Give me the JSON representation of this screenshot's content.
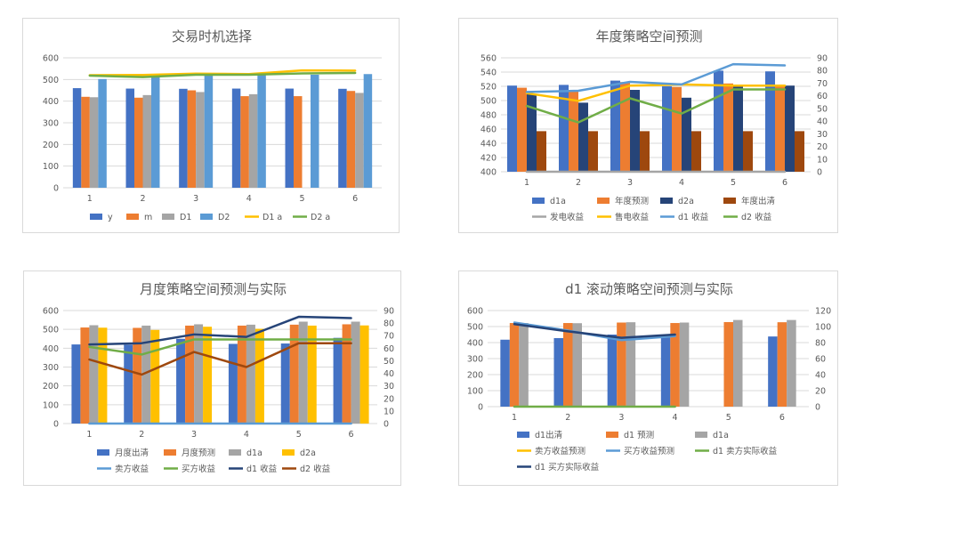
{
  "chart_data": [
    {
      "type": "bar",
      "title": "交易时机选择",
      "categories": [
        "1",
        "2",
        "3",
        "4",
        "5",
        "6"
      ],
      "y_left": {
        "min": 0,
        "max": 600,
        "step": 100,
        "ticks": [
          "0",
          "100",
          "200",
          "300",
          "400",
          "500",
          "600"
        ]
      },
      "y_right": null,
      "bars": [
        {
          "name": "y",
          "color": "#4472c4",
          "values": [
            460,
            458,
            457,
            458,
            458,
            457
          ]
        },
        {
          "name": "m",
          "color": "#ed7d31",
          "values": [
            420,
            416,
            450,
            423,
            423,
            447
          ]
        },
        {
          "name": "D1",
          "color": "#a5a5a5",
          "values": [
            418,
            428,
            442,
            432,
            null,
            438
          ]
        },
        {
          "name": "D2",
          "color": "#5b9bd5",
          "values": [
            502,
            518,
            522,
            520,
            522,
            525
          ]
        }
      ],
      "lines": [
        {
          "name": "D1 a",
          "color": "#ffc000",
          "axis": "left",
          "values": [
            520,
            521,
            527,
            525,
            542,
            541
          ]
        },
        {
          "name": "D2 a",
          "color": "#70ad47",
          "axis": "left",
          "values": [
            518,
            511,
            522,
            522,
            528,
            530
          ]
        }
      ],
      "legend": [
        "y",
        "m",
        "D1",
        "D2",
        "D1 a",
        "D2 a"
      ],
      "grid": true,
      "legend_position": "bottom"
    },
    {
      "type": "bar",
      "title": "年度策略空间预测",
      "categories": [
        "1",
        "2",
        "3",
        "4",
        "5",
        "6"
      ],
      "y_left": {
        "min": 400,
        "max": 560,
        "step": 20,
        "ticks": [
          "400",
          "420",
          "440",
          "460",
          "480",
          "500",
          "520",
          "540",
          "560"
        ]
      },
      "y_right": {
        "min": 0,
        "max": 90,
        "step": 10,
        "ticks": [
          "0",
          "10",
          "20",
          "30",
          "40",
          "50",
          "60",
          "70",
          "80",
          "90"
        ]
      },
      "bars": [
        {
          "name": "d1a",
          "color": "#4472c4",
          "values": [
            521,
            522,
            528,
            520,
            542,
            541
          ]
        },
        {
          "name": "年度预测",
          "color": "#ed7d31",
          "values": [
            518,
            513,
            526,
            519,
            524,
            522
          ]
        },
        {
          "name": "d2a",
          "color": "#264478",
          "values": [
            509,
            497,
            515,
            504,
            520,
            521
          ]
        },
        {
          "name": "年度出清",
          "color": "#9e480e",
          "values": [
            457,
            457,
            457,
            457,
            457,
            457
          ]
        }
      ],
      "lines": [
        {
          "name": "发电收益",
          "color": "#a5a5a5",
          "axis": "right",
          "values": [
            0,
            0,
            0,
            0,
            0,
            0
          ]
        },
        {
          "name": "售电收益",
          "color": "#ffc000",
          "axis": "right",
          "values": [
            62,
            56,
            68,
            69,
            68,
            68
          ]
        },
        {
          "name": "d1 收益",
          "color": "#5b9bd5",
          "axis": "right",
          "values": [
            63,
            64,
            71,
            69,
            85,
            84
          ]
        },
        {
          "name": "d2 收益",
          "color": "#70ad47",
          "axis": "right",
          "values": [
            52,
            39,
            58,
            46,
            65,
            65
          ]
        }
      ],
      "legend": [
        "d1a",
        "年度预测",
        "d2a",
        "年度出清",
        "发电收益",
        "售电收益",
        "d1 收益",
        "d2 收益"
      ],
      "grid": true,
      "legend_position": "bottom"
    },
    {
      "type": "bar",
      "title": "月度策略空间预测与实际",
      "categories": [
        "1",
        "2",
        "3",
        "4",
        "5",
        "6"
      ],
      "y_left": {
        "min": 0,
        "max": 600,
        "step": 100,
        "ticks": [
          "0",
          "100",
          "200",
          "300",
          "400",
          "500",
          "600"
        ]
      },
      "y_right": {
        "min": 0,
        "max": 90,
        "step": 10,
        "ticks": [
          "0",
          "10",
          "20",
          "30",
          "40",
          "50",
          "60",
          "70",
          "80",
          "90"
        ]
      },
      "bars": [
        {
          "name": "月度出清",
          "color": "#4472c4",
          "values": [
            420,
            418,
            450,
            423,
            425,
            455
          ]
        },
        {
          "name": "月度预测",
          "color": "#ed7d31",
          "values": [
            510,
            508,
            520,
            520,
            525,
            527
          ]
        },
        {
          "name": "d1a",
          "color": "#a5a5a5",
          "values": [
            522,
            520,
            527,
            525,
            541,
            541
          ]
        },
        {
          "name": "d2a",
          "color": "#ffc000",
          "values": [
            509,
            497,
            514,
            503,
            520,
            521
          ]
        }
      ],
      "lines": [
        {
          "name": "卖方收益",
          "color": "#5b9bd5",
          "axis": "right",
          "values": [
            0,
            0,
            0,
            0,
            0,
            0
          ]
        },
        {
          "name": "买方收益",
          "color": "#70ad47",
          "axis": "right",
          "values": [
            61,
            55,
            67,
            67,
            67,
            67
          ]
        },
        {
          "name": "d1 收益",
          "color": "#264478",
          "axis": "right",
          "values": [
            63,
            64,
            71,
            69,
            85,
            84
          ]
        },
        {
          "name": "d2 收益",
          "color": "#9e480e",
          "axis": "right",
          "values": [
            51,
            39,
            57,
            45,
            64,
            64
          ]
        }
      ],
      "legend": [
        "月度出清",
        "月度预测",
        "d1a",
        "d2a",
        "卖方收益",
        "买方收益",
        "d1 收益",
        "d2 收益"
      ],
      "grid": true,
      "legend_position": "bottom"
    },
    {
      "type": "bar",
      "title": "d1 滚动策略空间预测与实际",
      "categories": [
        "1",
        "2",
        "3",
        "4",
        "5",
        "6"
      ],
      "y_left": {
        "min": 0,
        "max": 600,
        "step": 100,
        "ticks": [
          "0",
          "100",
          "200",
          "300",
          "400",
          "500",
          "600"
        ]
      },
      "y_right": {
        "min": 0,
        "max": 120,
        "step": 20,
        "ticks": [
          "0",
          "20",
          "40",
          "60",
          "80",
          "100",
          "120"
        ]
      },
      "bars": [
        {
          "name": "d1出清",
          "color": "#4472c4",
          "values": [
            418,
            428,
            450,
            432,
            null,
            438
          ]
        },
        {
          "name": "d1 预测",
          "color": "#ed7d31",
          "values": [
            522,
            522,
            525,
            522,
            528,
            527
          ]
        },
        {
          "name": "d1a",
          "color": "#a5a5a5",
          "values": [
            522,
            521,
            527,
            525,
            541,
            541
          ]
        }
      ],
      "lines": [
        {
          "name": "卖方收益预测",
          "color": "#ffc000",
          "axis": "right",
          "values": [
            null,
            null,
            null,
            null,
            null,
            null
          ]
        },
        {
          "name": "买方收益预测",
          "color": "#5b9bd5",
          "axis": "right",
          "values": [
            105,
            95,
            83,
            88,
            null,
            null
          ]
        },
        {
          "name": "d1 卖方实际收益",
          "color": "#70ad47",
          "axis": "right",
          "values": [
            0,
            0,
            0,
            0,
            null,
            null
          ]
        },
        {
          "name": "d1 买方实际收益",
          "color": "#264478",
          "axis": "right",
          "values": [
            103,
            94,
            86,
            90,
            null,
            null
          ]
        }
      ],
      "legend": [
        "d1出清",
        "d1 预测",
        "d1a",
        "卖方收益预测",
        "买方收益预测",
        "d1 卖方实际收益",
        "d1 买方实际收益"
      ],
      "grid": true,
      "legend_position": "bottom"
    }
  ]
}
